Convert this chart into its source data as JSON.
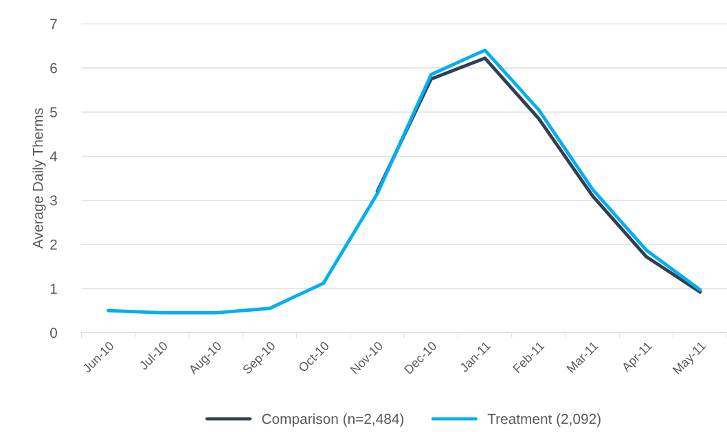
{
  "chart_data": {
    "type": "line",
    "ylabel": "Average Daily Therms",
    "categories": [
      "Jun-10",
      "Jul-10",
      "Aug-10",
      "Sep-10",
      "Oct-10",
      "Nov-10",
      "Dec-10",
      "Jan-11",
      "Feb-11",
      "Mar-11",
      "Apr-11",
      "May-11"
    ],
    "series": [
      {
        "name": "Comparison (n=2,484)",
        "color": "#333f50",
        "values": [
          null,
          null,
          null,
          null,
          null,
          3.2,
          5.75,
          6.22,
          4.85,
          3.1,
          1.72,
          0.92
        ]
      },
      {
        "name": "Treatment (2,092)",
        "color": "#00b0f0",
        "values": [
          0.5,
          0.45,
          0.45,
          0.55,
          1.12,
          3.15,
          5.85,
          6.4,
          5.05,
          3.25,
          1.87,
          0.97
        ]
      }
    ],
    "ylim": [
      0,
      7
    ],
    "yticks": [
      0,
      1,
      2,
      3,
      4,
      5,
      6,
      7
    ],
    "grid": "y",
    "legend": "bottom",
    "marker": "none",
    "line_style": "solid"
  }
}
